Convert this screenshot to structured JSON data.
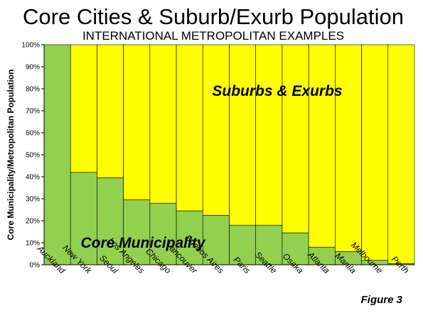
{
  "chart_data": {
    "type": "bar",
    "stacked": true,
    "title": "Core Cities & Suburb/Exurb Population",
    "subtitle": "INTERNATIONAL METROPOLITAN EXAMPLES",
    "xlabel": "",
    "ylabel": "Core Municipality/Metropolitan Population",
    "ylim": [
      0,
      100
    ],
    "yticks": [
      "0%",
      "10%",
      "20%",
      "30%",
      "40%",
      "50%",
      "60%",
      "70%",
      "80%",
      "90%",
      "100%"
    ],
    "categories": [
      "Auckland",
      "New York",
      "Seoul",
      "Los Angeles",
      "Chicago",
      "Vancouver",
      "Buenos Aires",
      "Paris",
      "Seattle",
      "Osaka",
      "Atlanta",
      "Manila",
      "Melbourne",
      "Perth"
    ],
    "series": [
      {
        "name": "Core Municipality",
        "color": "#92d050",
        "values": [
          100,
          42,
          39.5,
          29.5,
          28,
          24.5,
          22.5,
          18,
          18,
          14.5,
          8,
          6,
          2,
          0.5
        ]
      },
      {
        "name": "Suburbs & Exurbs",
        "color": "#ffff00",
        "values": [
          0,
          58,
          60.5,
          70.5,
          72,
          75.5,
          77.5,
          82,
          82,
          85.5,
          92,
          94,
          98,
          99.5
        ]
      }
    ],
    "annotations": [
      "Suburbs & Exurbs",
      "Core Municipality"
    ],
    "figure_label": "Figure 3",
    "grid": false
  }
}
